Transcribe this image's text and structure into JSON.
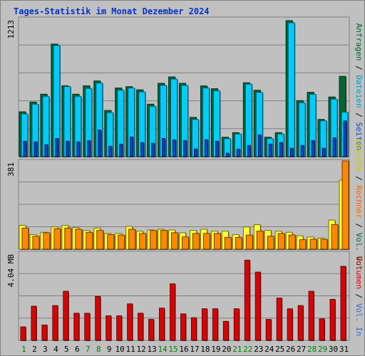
{
  "title": "Tages-Statistik im Monat Dezember 2024",
  "colors": {
    "background": "#c0c0c0",
    "grid": "#808080",
    "anfragen": "#006633",
    "dateien": "#00ccff",
    "seiten": "#0044cc",
    "besuche": "#ffff33",
    "rechner": "#ff8800",
    "vol_in": "#3366cc",
    "vol_out": "#006633",
    "volumen": "#dd0000",
    "weekend": "#008000",
    "weekday": "#000000"
  },
  "chart_data": [
    {
      "type": "bar",
      "panel": "top",
      "ymax_label": "1213",
      "ylim": [
        0,
        1213
      ],
      "categories": [
        "1",
        "2",
        "3",
        "4",
        "5",
        "6",
        "7",
        "8",
        "9",
        "10",
        "11",
        "12",
        "13",
        "14",
        "15",
        "16",
        "17",
        "18",
        "19",
        "20",
        "21",
        "22",
        "23",
        "24",
        "25",
        "26",
        "27",
        "28",
        "29",
        "30",
        "31"
      ],
      "weekend_days": [
        "1",
        "7",
        "8",
        "14",
        "15",
        "21",
        "22",
        "28",
        "29"
      ],
      "legend": [
        "Anfragen",
        "Dateien",
        "Seiten"
      ],
      "series": [
        {
          "name": "Anfragen",
          "values": [
            400,
            487,
            557,
            1004,
            632,
            557,
            632,
            675,
            412,
            612,
            624,
            596,
            468,
            654,
            711,
            654,
            350,
            631,
            606,
            173,
            214,
            659,
            592,
            173,
            214,
            1213,
            500,
            574,
            332,
            532,
            716
          ]
        },
        {
          "name": "Dateien",
          "values": [
            381,
            468,
            538,
            991,
            625,
            538,
            608,
            656,
            393,
            593,
            612,
            577,
            449,
            635,
            692,
            635,
            331,
            612,
            587,
            161,
            202,
            647,
            573,
            161,
            202,
            1194,
            481,
            555,
            320,
            513,
            396
          ]
        },
        {
          "name": "Seiten",
          "values": [
            137,
            131,
            106,
            162,
            137,
            131,
            143,
            237,
            93,
            112,
            175,
            125,
            119,
            162,
            150,
            143,
            68,
            150,
            137,
            31,
            68,
            100,
            193,
            112,
            125,
            75,
            100,
            143,
            75,
            168,
            318
          ]
        }
      ]
    },
    {
      "type": "bar",
      "panel": "middle",
      "ymax_label": "381",
      "ylim": [
        0,
        381
      ],
      "categories": [
        "1",
        "2",
        "3",
        "4",
        "5",
        "6",
        "7",
        "8",
        "9",
        "10",
        "11",
        "12",
        "13",
        "14",
        "15",
        "16",
        "17",
        "18",
        "19",
        "20",
        "21",
        "22",
        "23",
        "24",
        "25",
        "26",
        "27",
        "28",
        "29",
        "30",
        "31"
      ],
      "legend": [
        "Besuche",
        "Rechner",
        "Vol. Out"
      ],
      "series": [
        {
          "name": "Besuche",
          "values": [
            103,
            63,
            73,
            96,
            103,
            93,
            81,
            91,
            68,
            68,
            98,
            78,
            83,
            86,
            83,
            71,
            81,
            86,
            78,
            78,
            63,
            96,
            106,
            81,
            78,
            73,
            58,
            53,
            48,
            126,
            298
          ]
        },
        {
          "name": "Rechner",
          "values": [
            91,
            56,
            71,
            88,
            91,
            86,
            73,
            81,
            63,
            61,
            86,
            68,
            81,
            81,
            71,
            53,
            68,
            68,
            68,
            51,
            51,
            61,
            78,
            56,
            68,
            61,
            41,
            43,
            43,
            106,
            381
          ]
        }
      ]
    },
    {
      "type": "bar",
      "panel": "bottom",
      "ymax_label": "4.04 MB",
      "ylim": [
        0,
        4.04
      ],
      "categories": [
        "1",
        "2",
        "3",
        "4",
        "5",
        "6",
        "7",
        "8",
        "9",
        "10",
        "11",
        "12",
        "13",
        "14",
        "15",
        "16",
        "17",
        "18",
        "19",
        "20",
        "21",
        "22",
        "23",
        "24",
        "25",
        "26",
        "27",
        "28",
        "29",
        "30",
        "31"
      ],
      "legend": [
        "Volumen",
        "Vol. In"
      ],
      "series": [
        {
          "name": "Volumen",
          "values": [
            0.63,
            1.6,
            0.72,
            1.63,
            2.3,
            1.27,
            1.27,
            2.06,
            1.15,
            1.15,
            1.71,
            1.27,
            0.98,
            1.51,
            2.65,
            1.24,
            1.06,
            1.48,
            1.48,
            0.89,
            1.48,
            3.76,
            3.2,
            0.98,
            1.98,
            1.48,
            1.63,
            2.3,
            1.01,
            1.92,
            3.47
          ]
        }
      ]
    }
  ],
  "right_labels": {
    "top": [
      {
        "text": "Anfragen",
        "color": "#006633"
      },
      {
        "text": " / ",
        "color": "#000000"
      },
      {
        "text": "Dateien",
        "color": "#0099cc"
      },
      {
        "text": " / ",
        "color": "#000000"
      },
      {
        "text": "Seiten",
        "color": "#0044cc"
      }
    ],
    "middle": [
      {
        "text": "Besuche",
        "color": "#cccc00"
      },
      {
        "text": " / ",
        "color": "#000000"
      },
      {
        "text": "Rechner",
        "color": "#ff6600"
      },
      {
        "text": " / ",
        "color": "#000000"
      },
      {
        "text": "Vol. Out",
        "color": "#006633"
      }
    ],
    "bottom": [
      {
        "text": "Volumen",
        "color": "#dd0000"
      },
      {
        "text": " / ",
        "color": "#000000"
      },
      {
        "text": "Vol. In",
        "color": "#3366cc"
      }
    ]
  }
}
